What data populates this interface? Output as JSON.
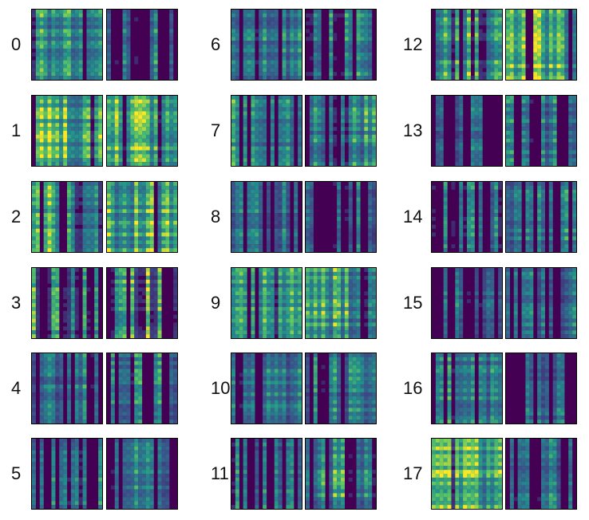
{
  "chart_data": {
    "type": "heatmap",
    "title": "",
    "colormap": "viridis",
    "colormap_stops": [
      "#440154",
      "#3b528b",
      "#21918c",
      "#5ec962",
      "#fde725"
    ],
    "panels_per_row": 2,
    "rows": [
      {
        "index": "0",
        "brightness": [
          0.55,
          0.35
        ],
        "density": [
          0.85,
          0.6
        ],
        "left_bright_bias": [
          0.0,
          0.0
        ]
      },
      {
        "index": "1",
        "brightness": [
          0.75,
          0.75
        ],
        "density": [
          0.9,
          0.9
        ],
        "left_bright_bias": [
          0.0,
          0.0
        ]
      },
      {
        "index": "2",
        "brightness": [
          0.6,
          0.7
        ],
        "density": [
          0.75,
          0.85
        ],
        "left_bright_bias": [
          0.0,
          0.0
        ]
      },
      {
        "index": "3",
        "brightness": [
          0.7,
          0.95
        ],
        "density": [
          0.4,
          0.1
        ],
        "left_bright_bias": [
          0.0,
          0.0
        ]
      },
      {
        "index": "4",
        "brightness": [
          0.25,
          0.3
        ],
        "density": [
          0.5,
          0.55
        ],
        "left_bright_bias": [
          0.0,
          0.0
        ]
      },
      {
        "index": "5",
        "brightness": [
          0.35,
          0.35
        ],
        "density": [
          0.7,
          0.6
        ],
        "left_bright_bias": [
          0.0,
          0.0
        ]
      },
      {
        "index": "6",
        "brightness": [
          0.3,
          0.35
        ],
        "density": [
          0.6,
          0.55
        ],
        "left_bright_bias": [
          0.0,
          0.0
        ]
      },
      {
        "index": "7",
        "brightness": [
          0.45,
          0.45
        ],
        "density": [
          0.6,
          0.65
        ],
        "left_bright_bias": [
          0.0,
          0.0
        ]
      },
      {
        "index": "8",
        "brightness": [
          0.25,
          0.25
        ],
        "density": [
          0.6,
          0.55
        ],
        "left_bright_bias": [
          0.0,
          0.0
        ]
      },
      {
        "index": "9",
        "brightness": [
          0.45,
          0.5
        ],
        "density": [
          0.85,
          0.85
        ],
        "left_bright_bias": [
          0.0,
          0.0
        ]
      },
      {
        "index": "10",
        "brightness": [
          0.25,
          0.25
        ],
        "density": [
          0.7,
          0.6
        ],
        "left_bright_bias": [
          0.0,
          0.0
        ]
      },
      {
        "index": "11",
        "brightness": [
          0.3,
          0.45
        ],
        "density": [
          0.6,
          0.7
        ],
        "left_bright_bias": [
          0.0,
          0.0
        ]
      },
      {
        "index": "12",
        "brightness": [
          0.7,
          0.8
        ],
        "density": [
          0.7,
          0.85
        ],
        "left_bright_bias": [
          0.0,
          0.0
        ]
      },
      {
        "index": "13",
        "brightness": [
          0.25,
          0.25
        ],
        "density": [
          0.55,
          0.5
        ],
        "left_bright_bias": [
          0.0,
          0.0
        ]
      },
      {
        "index": "14",
        "brightness": [
          0.35,
          0.35
        ],
        "density": [
          0.45,
          0.6
        ],
        "left_bright_bias": [
          0.0,
          0.0
        ]
      },
      {
        "index": "15",
        "brightness": [
          0.2,
          0.25
        ],
        "density": [
          0.6,
          0.55
        ],
        "left_bright_bias": [
          0.0,
          0.0
        ]
      },
      {
        "index": "16",
        "brightness": [
          0.3,
          0.3
        ],
        "density": [
          0.6,
          0.55
        ],
        "left_bright_bias": [
          0.0,
          0.0
        ]
      },
      {
        "index": "17",
        "brightness": [
          0.75,
          0.25
        ],
        "density": [
          0.8,
          0.4
        ],
        "left_bright_bias": [
          0.0,
          0.0
        ]
      }
    ]
  }
}
